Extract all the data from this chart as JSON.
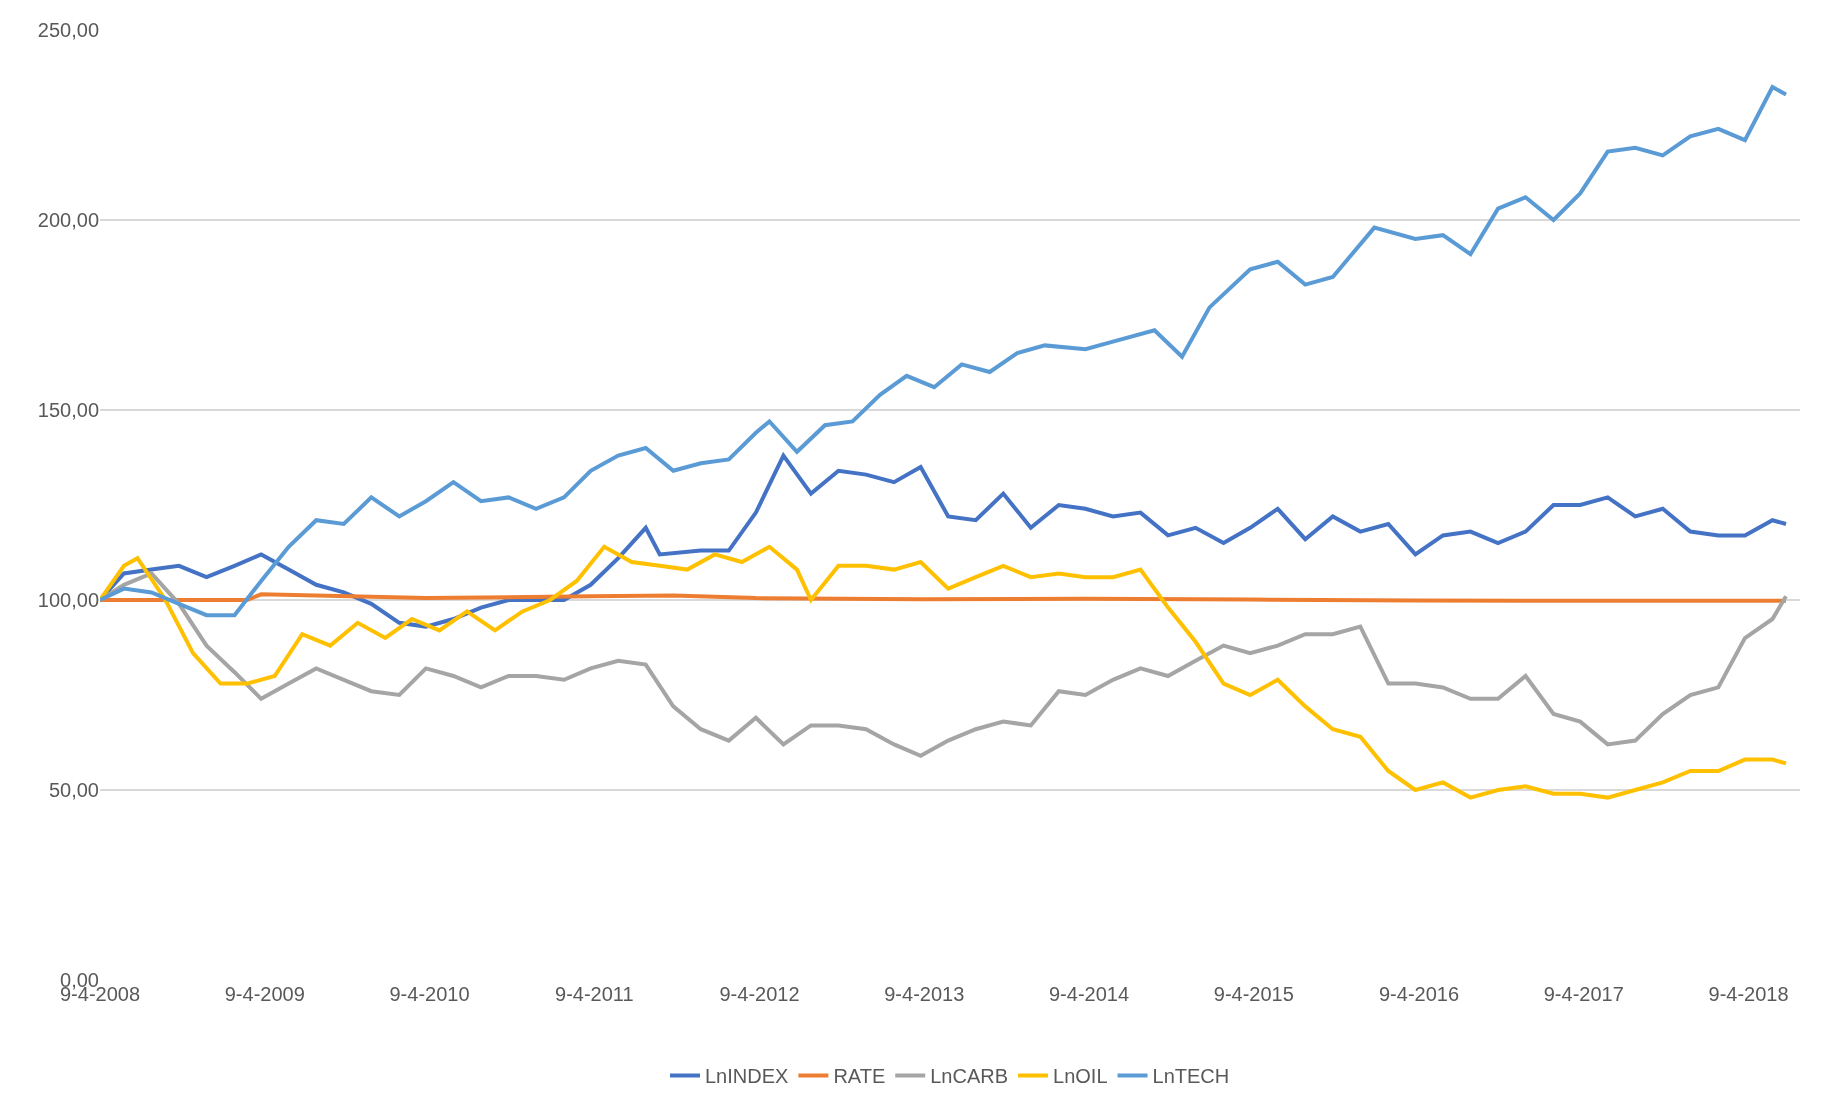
{
  "chart_data": {
    "type": "line",
    "grid": "y",
    "legend": "bottom",
    "marker": "none",
    "line_style": "solid",
    "xlim": [
      "2008-04-09",
      "2018-08-01"
    ],
    "xticks": [
      {
        "value": "2008-04-09",
        "label": "9-4-2008"
      },
      {
        "value": "2009-04-09",
        "label": "9-4-2009"
      },
      {
        "value": "2010-04-09",
        "label": "9-4-2010"
      },
      {
        "value": "2011-04-09",
        "label": "9-4-2011"
      },
      {
        "value": "2012-04-09",
        "label": "9-4-2012"
      },
      {
        "value": "2013-04-09",
        "label": "9-4-2013"
      },
      {
        "value": "2014-04-09",
        "label": "9-4-2014"
      },
      {
        "value": "2015-04-09",
        "label": "9-4-2015"
      },
      {
        "value": "2016-04-09",
        "label": "9-4-2016"
      },
      {
        "value": "2017-04-09",
        "label": "9-4-2017"
      },
      {
        "value": "2018-04-09",
        "label": "9-4-2018"
      }
    ],
    "ylim": [
      0,
      250
    ],
    "yticks": [
      {
        "value": 0,
        "label": "0,00"
      },
      {
        "value": 50,
        "label": "50,00"
      },
      {
        "value": 100,
        "label": "100,00"
      },
      {
        "value": 150,
        "label": "150,00"
      },
      {
        "value": 200,
        "label": "200,00"
      },
      {
        "value": 250,
        "label": "250,00"
      }
    ],
    "series": [
      {
        "name": "LnINDEX",
        "color": "#4472c4",
        "x": [
          "2008-04-09",
          "2008-06",
          "2008-08",
          "2008-10",
          "2008-12",
          "2009-02",
          "2009-04",
          "2009-06",
          "2009-08",
          "2009-10",
          "2009-12",
          "2010-02",
          "2010-04",
          "2010-06",
          "2010-08",
          "2010-10",
          "2010-12",
          "2011-02",
          "2011-04",
          "2011-06",
          "2011-08",
          "2011-09",
          "2011-12",
          "2012-02",
          "2012-04",
          "2012-06",
          "2012-08",
          "2012-10",
          "2012-12",
          "2013-02",
          "2013-04",
          "2013-06",
          "2013-08",
          "2013-10",
          "2013-12",
          "2014-02",
          "2014-04",
          "2014-06",
          "2014-08",
          "2014-10",
          "2014-12",
          "2015-02",
          "2015-04",
          "2015-06",
          "2015-08",
          "2015-10",
          "2015-12",
          "2016-02",
          "2016-04",
          "2016-06",
          "2016-08",
          "2016-10",
          "2016-12",
          "2017-02",
          "2017-04",
          "2017-06",
          "2017-08",
          "2017-10",
          "2017-12",
          "2018-02",
          "2018-04",
          "2018-06",
          "2018-07"
        ],
        "values": [
          100,
          107,
          108,
          109,
          106,
          109,
          112,
          108,
          104,
          102,
          99,
          94,
          93,
          95,
          98,
          100,
          100,
          100,
          104,
          111,
          119,
          112,
          113,
          113,
          123,
          138,
          128,
          134,
          133,
          131,
          135,
          122,
          121,
          128,
          119,
          125,
          124,
          122,
          123,
          117,
          119,
          115,
          119,
          124,
          116,
          122,
          118,
          120,
          112,
          117,
          118,
          115,
          118,
          125,
          125,
          127,
          122,
          124,
          118,
          117,
          117,
          121,
          120
        ]
      },
      {
        "name": "RATE",
        "color": "#ed7d31",
        "x": [
          "2008-04-09",
          "2009-03",
          "2009-04",
          "2010-04",
          "2011-04",
          "2011-10",
          "2012-04",
          "2013-04",
          "2014-04",
          "2015-04",
          "2016-04",
          "2017-04",
          "2018-07"
        ],
        "values": [
          100,
          100,
          101.5,
          100.5,
          101,
          101.2,
          100.5,
          100.2,
          100.3,
          100.1,
          99.9,
          99.8,
          99.8
        ]
      },
      {
        "name": "LnCARB",
        "color": "#a5a5a5",
        "x": [
          "2008-04-09",
          "2008-06",
          "2008-08",
          "2008-10",
          "2008-12",
          "2009-02",
          "2009-04",
          "2009-06",
          "2009-08",
          "2009-10",
          "2009-12",
          "2010-02",
          "2010-04",
          "2010-06",
          "2010-08",
          "2010-10",
          "2010-12",
          "2011-02",
          "2011-04",
          "2011-06",
          "2011-08",
          "2011-10",
          "2011-12",
          "2012-02",
          "2012-04",
          "2012-06",
          "2012-08",
          "2012-10",
          "2012-12",
          "2013-02",
          "2013-04",
          "2013-06",
          "2013-08",
          "2013-10",
          "2013-12",
          "2014-02",
          "2014-04",
          "2014-06",
          "2014-08",
          "2014-10",
          "2014-12",
          "2015-02",
          "2015-04",
          "2015-06",
          "2015-08",
          "2015-10",
          "2015-12",
          "2016-02",
          "2016-04",
          "2016-06",
          "2016-08",
          "2016-10",
          "2016-12",
          "2017-02",
          "2017-04",
          "2017-06",
          "2017-08",
          "2017-10",
          "2017-12",
          "2018-02",
          "2018-04",
          "2018-06",
          "2018-07"
        ],
        "values": [
          100,
          104,
          107,
          99,
          88,
          81,
          74,
          78,
          82,
          79,
          76,
          75,
          82,
          80,
          77,
          80,
          80,
          79,
          82,
          84,
          83,
          72,
          66,
          63,
          69,
          62,
          67,
          67,
          66,
          62,
          59,
          63,
          66,
          68,
          67,
          76,
          75,
          79,
          82,
          80,
          84,
          88,
          86,
          88,
          91,
          91,
          93,
          78,
          78,
          77,
          74,
          74,
          80,
          70,
          68,
          62,
          63,
          70,
          75,
          77,
          90,
          95,
          101
        ]
      },
      {
        "name": "LnOIL",
        "color": "#ffc000",
        "x": [
          "2008-04-09",
          "2008-06",
          "2008-07",
          "2008-09",
          "2008-11",
          "2009-01",
          "2009-03",
          "2009-05",
          "2009-07",
          "2009-09",
          "2009-11",
          "2010-01",
          "2010-03",
          "2010-05",
          "2010-07",
          "2010-09",
          "2010-11",
          "2011-01",
          "2011-03",
          "2011-05",
          "2011-07",
          "2011-09",
          "2011-11",
          "2012-01",
          "2012-03",
          "2012-05",
          "2012-07",
          "2012-08",
          "2012-10",
          "2012-12",
          "2013-02",
          "2013-04",
          "2013-06",
          "2013-08",
          "2013-10",
          "2013-12",
          "2014-02",
          "2014-04",
          "2014-06",
          "2014-08",
          "2014-10",
          "2014-12",
          "2015-02",
          "2015-04",
          "2015-06",
          "2015-08",
          "2015-10",
          "2015-12",
          "2016-02",
          "2016-04",
          "2016-06",
          "2016-08",
          "2016-10",
          "2016-12",
          "2017-02",
          "2017-04",
          "2017-06",
          "2017-08",
          "2017-10",
          "2017-12",
          "2018-02",
          "2018-04",
          "2018-06",
          "2018-07"
        ],
        "values": [
          100,
          109,
          111,
          100,
          86,
          78,
          78,
          80,
          91,
          88,
          94,
          90,
          95,
          92,
          97,
          92,
          97,
          100,
          105,
          114,
          110,
          109,
          108,
          112,
          110,
          114,
          108,
          100,
          109,
          109,
          108,
          110,
          103,
          106,
          109,
          106,
          107,
          106,
          106,
          108,
          98,
          89,
          78,
          75,
          79,
          72,
          66,
          64,
          55,
          50,
          52,
          48,
          50,
          51,
          49,
          49,
          48,
          50,
          52,
          55,
          55,
          58,
          58,
          57
        ]
      },
      {
        "name": "LnTECH",
        "color": "#5b9bd5",
        "x": [
          "2008-04-09",
          "2008-06",
          "2008-08",
          "2008-10",
          "2008-12",
          "2009-02",
          "2009-04",
          "2009-06",
          "2009-08",
          "2009-10",
          "2009-12",
          "2010-02",
          "2010-04",
          "2010-06",
          "2010-08",
          "2010-10",
          "2010-12",
          "2011-02",
          "2011-04",
          "2011-06",
          "2011-08",
          "2011-10",
          "2011-12",
          "2012-02",
          "2012-04",
          "2012-05",
          "2012-07",
          "2012-09",
          "2012-11",
          "2013-01",
          "2013-03",
          "2013-05",
          "2013-07",
          "2013-09",
          "2013-11",
          "2014-01",
          "2014-04",
          "2014-06",
          "2014-09",
          "2014-11",
          "2015-01",
          "2015-04",
          "2015-06",
          "2015-08",
          "2015-10",
          "2016-01",
          "2016-04",
          "2016-06",
          "2016-08",
          "2016-10",
          "2016-12",
          "2017-02",
          "2017-04",
          "2017-06",
          "2017-08",
          "2017-10",
          "2017-12",
          "2018-02",
          "2018-04",
          "2018-06",
          "2018-07"
        ],
        "values": [
          100,
          103,
          102,
          99,
          96,
          96,
          105,
          114,
          121,
          120,
          127,
          122,
          126,
          131,
          126,
          127,
          124,
          127,
          134,
          138,
          140,
          134,
          136,
          137,
          144,
          147,
          139,
          146,
          147,
          154,
          159,
          156,
          162,
          160,
          165,
          167,
          166,
          168,
          171,
          164,
          177,
          187,
          189,
          183,
          185,
          198,
          195,
          196,
          191,
          203,
          206,
          200,
          207,
          218,
          219,
          217,
          222,
          224,
          221,
          235,
          233
        ]
      }
    ]
  }
}
